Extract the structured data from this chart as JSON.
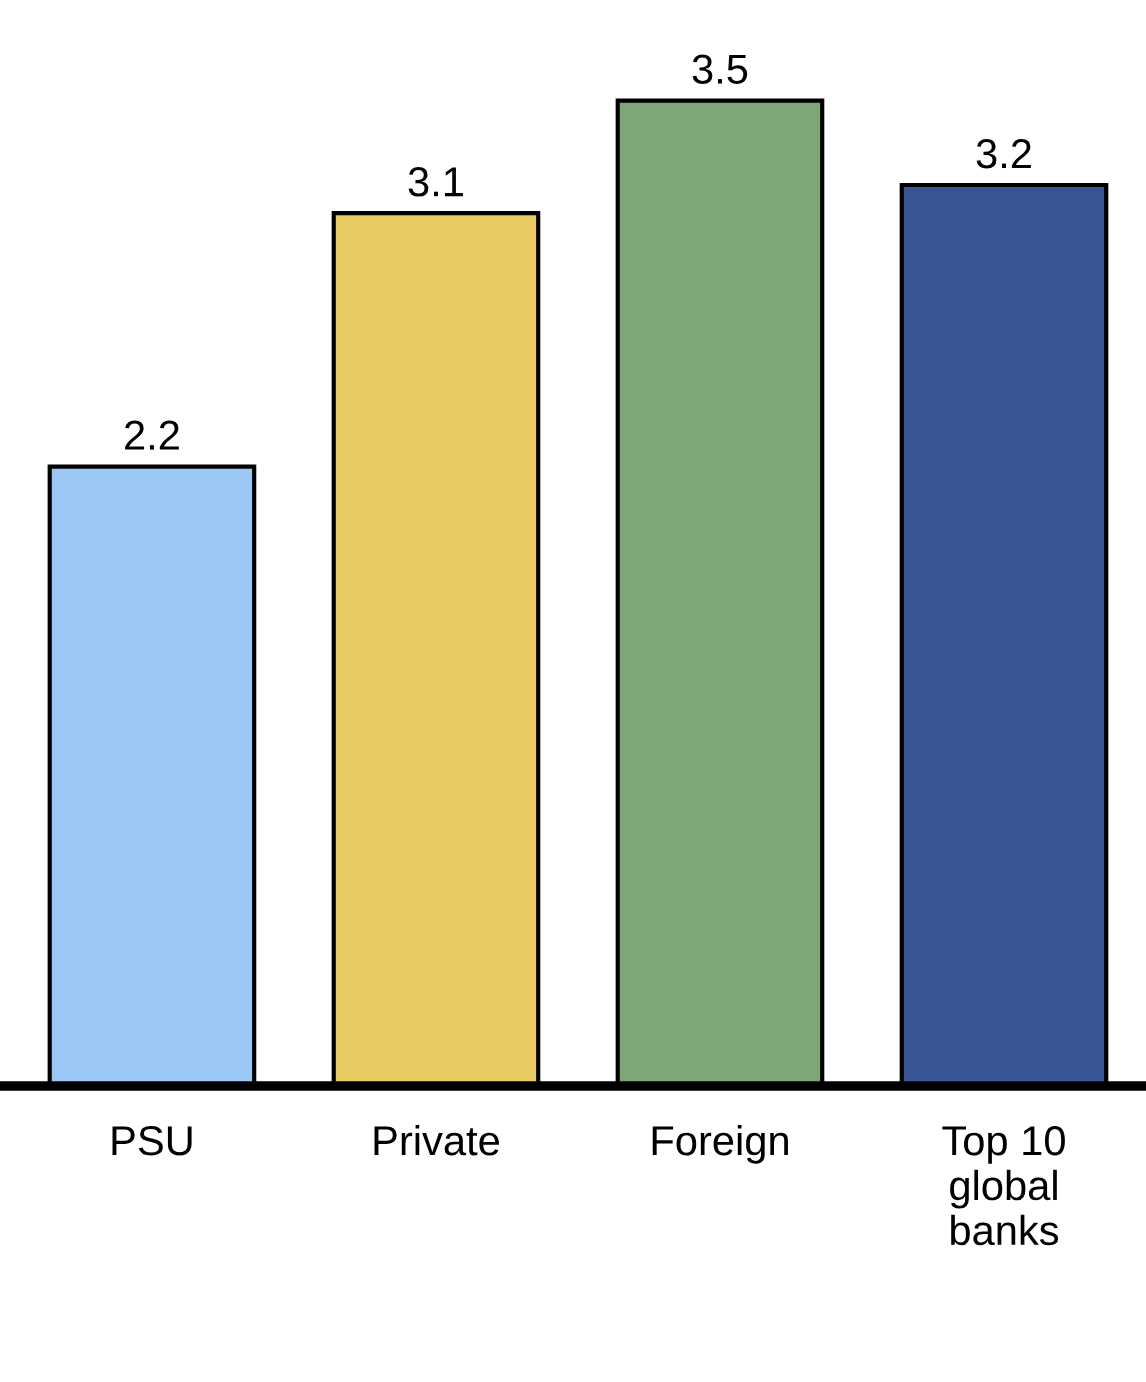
{
  "chart_data": {
    "type": "bar",
    "categories": [
      "PSU",
      "Private",
      "Foreign",
      "Top 10\nglobal\nbanks"
    ],
    "values": [
      2.2,
      3.1,
      3.5,
      3.2
    ],
    "colors": [
      "#9bc8f5",
      "#e8cb62",
      "#7fa676",
      "#3a5596"
    ],
    "data_labels": true,
    "grid": false,
    "legend": false
  }
}
